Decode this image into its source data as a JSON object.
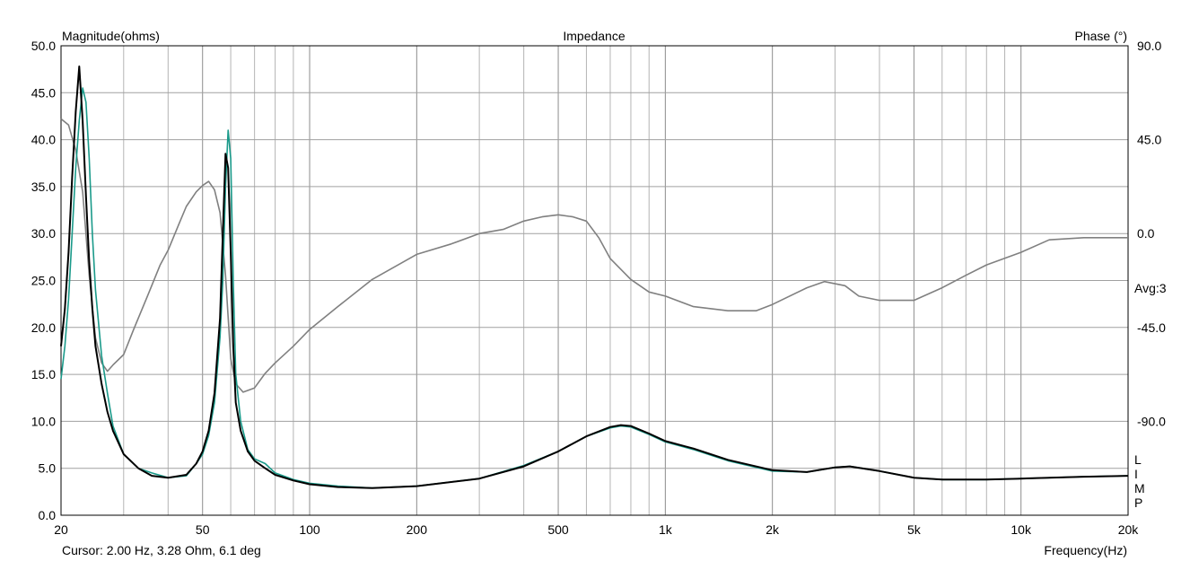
{
  "chart_data": {
    "type": "line",
    "title": "Impedance",
    "ylabel": "Magnitude(ohms)",
    "y2label": "Phase (°)",
    "xlabel": "Frequency(Hz)",
    "xscale": "log",
    "xlim": [
      20,
      20000
    ],
    "ylim": [
      0,
      50
    ],
    "y2lim": [
      -135,
      90
    ],
    "grid": true,
    "x_tick_labels": [
      {
        "v": 20,
        "t": "20"
      },
      {
        "v": 50,
        "t": "50"
      },
      {
        "v": 100,
        "t": "100"
      },
      {
        "v": 200,
        "t": "200"
      },
      {
        "v": 500,
        "t": "500"
      },
      {
        "v": 1000,
        "t": "1k"
      },
      {
        "v": 2000,
        "t": "2k"
      },
      {
        "v": 5000,
        "t": "5k"
      },
      {
        "v": 10000,
        "t": "10k"
      },
      {
        "v": 20000,
        "t": "20k"
      }
    ],
    "y_tick_labels": [
      "0.0",
      "5.0",
      "10.0",
      "15.0",
      "20.0",
      "25.0",
      "30.0",
      "35.0",
      "40.0",
      "45.0",
      "50.0"
    ],
    "y2_tick_labels": [
      {
        "v": 90,
        "t": "90.0"
      },
      {
        "v": 45,
        "t": "45.0"
      },
      {
        "v": 0,
        "t": "0.0"
      },
      {
        "v": -45,
        "t": "-45.0"
      },
      {
        "v": -90,
        "t": "-90.0"
      }
    ],
    "annotation": "Avg:3",
    "cursor_text": "Cursor: 2.00 Hz, 3.28 Ohm, 6.1 deg",
    "legend_letters": [
      "L",
      "I",
      "M",
      "P"
    ],
    "series": [
      {
        "axis": "phase",
        "color": "#808080",
        "x": [
          20,
          21,
          22,
          23,
          24,
          25,
          26,
          27,
          28,
          30,
          32,
          35,
          38,
          40,
          43,
          45,
          48,
          50,
          52,
          54,
          56,
          58,
          60,
          62,
          65,
          70,
          75,
          80,
          90,
          100,
          120,
          150,
          200,
          250,
          300,
          350,
          400,
          450,
          500,
          550,
          600,
          650,
          700,
          800,
          900,
          1000,
          1200,
          1500,
          1800,
          2000,
          2500,
          2800,
          3200,
          3500,
          4000,
          5000,
          6000,
          7000,
          8000,
          10000,
          12000,
          15000,
          20000
        ],
        "y": [
          55,
          52,
          40,
          20,
          -20,
          -50,
          -62,
          -66,
          -63,
          -58,
          -46,
          -30,
          -15,
          -8,
          5,
          13,
          20,
          23,
          25,
          21,
          10,
          -20,
          -60,
          -72,
          -76,
          -74,
          -67,
          -62,
          -54,
          -46,
          -35,
          -22,
          -10,
          -5,
          0,
          2,
          6,
          8,
          9,
          8,
          6,
          -2,
          -12,
          -22,
          -28,
          -30,
          -35,
          -37,
          -37,
          -34,
          -26,
          -23,
          -25,
          -30,
          -32,
          -32,
          -26,
          -20,
          -15,
          -9,
          -3,
          -2,
          -2
        ]
      },
      {
        "axis": "magnitude",
        "color": "#1a9a8a",
        "x": [
          20,
          20.5,
          21,
          21.5,
          22,
          22.5,
          23,
          23.5,
          24,
          24.5,
          25,
          26,
          27,
          28,
          30,
          33,
          36,
          40,
          45,
          48,
          50,
          52,
          54,
          56,
          57,
          58,
          59,
          60,
          61,
          62,
          64,
          67,
          70,
          75,
          80,
          90,
          100,
          120,
          150,
          200,
          300,
          400,
          500,
          600,
          700,
          750,
          800,
          900,
          1000,
          1200,
          1500,
          2000,
          2500,
          3000,
          3300,
          4000,
          5000,
          6000,
          8000,
          10000,
          15000,
          20000
        ],
        "y": [
          14.5,
          18,
          23,
          30,
          37,
          42,
          45.5,
          44,
          38,
          30,
          24,
          17,
          13,
          9.5,
          6.5,
          5,
          4.5,
          4,
          4.2,
          5.5,
          6.5,
          8.5,
          12,
          19,
          25,
          35,
          41,
          38,
          25,
          15,
          10,
          7,
          6,
          5.5,
          4.5,
          3.8,
          3.4,
          3.1,
          2.9,
          3.1,
          3.9,
          5.3,
          6.8,
          8.4,
          9.3,
          9.5,
          9.4,
          8.6,
          7.8,
          7,
          5.8,
          4.7,
          4.6,
          5.1,
          5.2,
          4.7,
          4,
          3.8,
          3.8,
          3.9,
          4.1,
          4.2
        ]
      },
      {
        "axis": "magnitude",
        "color": "#000000",
        "x": [
          20,
          20.5,
          21,
          21.5,
          22,
          22.5,
          23,
          23.5,
          24,
          24.5,
          25,
          26,
          27,
          28,
          30,
          33,
          36,
          40,
          45,
          48,
          50,
          52,
          54,
          56,
          57,
          58,
          59,
          60,
          61,
          62,
          64,
          67,
          70,
          75,
          80,
          90,
          100,
          120,
          150,
          200,
          300,
          400,
          500,
          600,
          700,
          750,
          800,
          900,
          1000,
          1200,
          1500,
          2000,
          2500,
          3000,
          3300,
          4000,
          5000,
          6000,
          8000,
          10000,
          15000,
          20000
        ],
        "y": [
          18,
          22,
          28,
          36,
          43,
          47.8,
          42,
          34,
          27,
          22,
          18,
          14,
          11,
          9,
          6.5,
          5,
          4.2,
          4,
          4.3,
          5.5,
          6.8,
          9,
          13,
          21,
          30,
          38.5,
          37,
          28,
          18,
          12,
          9,
          6.8,
          5.8,
          5,
          4.3,
          3.7,
          3.3,
          3,
          2.9,
          3.1,
          3.9,
          5.2,
          6.8,
          8.4,
          9.4,
          9.6,
          9.5,
          8.7,
          7.9,
          7.1,
          5.9,
          4.8,
          4.6,
          5.1,
          5.2,
          4.7,
          4,
          3.8,
          3.8,
          3.9,
          4.1,
          4.2
        ]
      }
    ]
  }
}
